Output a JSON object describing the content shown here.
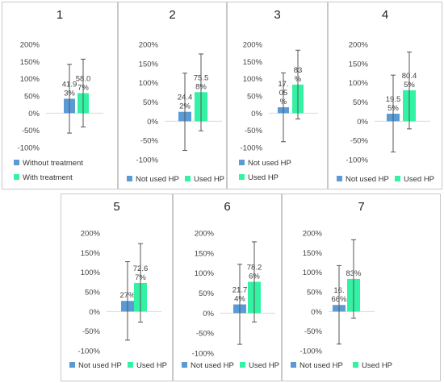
{
  "colors": {
    "series_a": "#5b9bd5",
    "series_b": "#33f2a4",
    "axis": "#d9d9d9",
    "error_bar": "#555555",
    "tick_text": "#444444"
  },
  "chart_data": [
    {
      "type": "bar",
      "title": "1",
      "ylim": [
        -100,
        200
      ],
      "yticks": [
        "200%",
        "150%",
        "100%",
        "50%",
        "0%",
        "-50%",
        "-100%"
      ],
      "grid": false,
      "legend": "bottom",
      "series": [
        {
          "name": "Without treatment",
          "value": 41.93,
          "label": "41.9\n3%",
          "err_low": -58,
          "err_high": 142
        },
        {
          "name": "With treatment",
          "value": 58.07,
          "label": "58.0\n7%",
          "err_low": -40,
          "err_high": 157
        }
      ]
    },
    {
      "type": "bar",
      "title": "2",
      "ylim": [
        -100,
        200
      ],
      "yticks": [
        "200%",
        "150%",
        "100%",
        "50%",
        "0%",
        "-50%",
        "-100%"
      ],
      "grid": false,
      "legend": "bottom",
      "series": [
        {
          "name": "Not used HP",
          "value": 24.42,
          "label": "24.4\n2%",
          "err_low": -76,
          "err_high": 125
        },
        {
          "name": "Used HP",
          "value": 75.58,
          "label": "75.5\n8%",
          "err_low": -25,
          "err_high": 175
        }
      ]
    },
    {
      "type": "bar",
      "title": "3",
      "ylim": [
        -100,
        200
      ],
      "yticks": [
        "200%",
        "150%",
        "100%",
        "50%",
        "0%",
        "-50%",
        "-100%"
      ],
      "grid": false,
      "legend": "bottom",
      "series": [
        {
          "name": "Not used HP",
          "value": 17.05,
          "label": "17.\n05\n%",
          "err_low": -83,
          "err_high": 117
        },
        {
          "name": "Used HP",
          "value": 83,
          "label": "83\n%",
          "err_low": -17,
          "err_high": 183
        }
      ]
    },
    {
      "type": "bar",
      "title": "4",
      "ylim": [
        -100,
        200
      ],
      "yticks": [
        "200%",
        "150%",
        "100%",
        "50%",
        "0%",
        "-50%",
        "-100%"
      ],
      "grid": false,
      "legend": "bottom",
      "series": [
        {
          "name": "Not used HP",
          "value": 19.55,
          "label": "19.5\n5%",
          "err_low": -80,
          "err_high": 120
        },
        {
          "name": "Used HP",
          "value": 80.45,
          "label": "80.4\n5%",
          "err_low": -20,
          "err_high": 180
        }
      ]
    },
    {
      "type": "bar",
      "title": "5",
      "ylim": [
        -100,
        200
      ],
      "yticks": [
        "200%",
        "150%",
        "100%",
        "50%",
        "0%",
        "-50%",
        "-100%"
      ],
      "grid": false,
      "legend": "bottom",
      "series": [
        {
          "name": "Not used HP",
          "value": 27,
          "label": "27%",
          "err_low": -73,
          "err_high": 127
        },
        {
          "name": "Used HP",
          "value": 72.67,
          "label": "72.6\n7%",
          "err_low": -27,
          "err_high": 173
        }
      ]
    },
    {
      "type": "bar",
      "title": "6",
      "ylim": [
        -100,
        200
      ],
      "yticks": [
        "200%",
        "150%",
        "100%",
        "50%",
        "0%",
        "-50%",
        "-100%"
      ],
      "grid": false,
      "legend": "bottom",
      "series": [
        {
          "name": "Not used HP",
          "value": 21.74,
          "label": "21.7\n4%",
          "err_low": -78,
          "err_high": 122
        },
        {
          "name": "Used HP",
          "value": 78.26,
          "label": "78.2\n6%",
          "err_low": -22,
          "err_high": 178
        }
      ]
    },
    {
      "type": "bar",
      "title": "7",
      "ylim": [
        -100,
        200
      ],
      "yticks": [
        "200%",
        "150%",
        "100%",
        "50%",
        "0%",
        "-50%",
        "-100%"
      ],
      "grid": false,
      "legend": "bottom",
      "series": [
        {
          "name": "Not used HP",
          "value": 16.66,
          "label": "16.\n66%",
          "err_low": -83,
          "err_high": 117
        },
        {
          "name": "Used HP",
          "value": 83,
          "label": "83%",
          "err_low": -17,
          "err_high": 183
        }
      ]
    }
  ]
}
